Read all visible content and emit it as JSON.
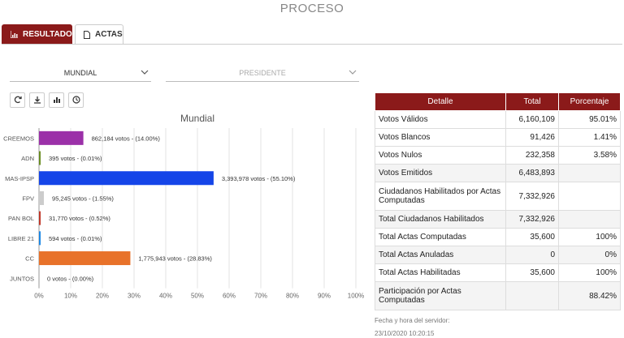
{
  "page": {
    "title": "PROCESO"
  },
  "tabs": [
    {
      "label": "RESULTADOS",
      "icon": "chart-icon",
      "active": true
    },
    {
      "label": "ACTAS",
      "icon": "document-icon",
      "active": false
    }
  ],
  "filters": {
    "scope": "MUNDIAL",
    "office": "PRESIDENTE"
  },
  "toolbar": {
    "icons": [
      "refresh-icon",
      "download-icon",
      "bar-chart-icon",
      "clock-icon"
    ]
  },
  "chart_data": {
    "type": "bar",
    "orientation": "horizontal",
    "title": "Mundial",
    "categories": [
      "CREEMOS",
      "ADN",
      "MAS-IPSP",
      "FPV",
      "PAN BOL",
      "LIBRE 21",
      "CC",
      "JUNTOS"
    ],
    "values": [
      14.0,
      0.01,
      55.1,
      1.55,
      0.52,
      0.01,
      28.83,
      0.0
    ],
    "data_labels": [
      "862,184 votos - (14.00%)",
      "395 votos - (0.01%)",
      "3,393,978 votos - (55.10%)",
      "95,245 votos - (1.55%)",
      "31,770 votos - (0.52%)",
      "594 votos - (0.01%)",
      "1,775,943 votos - (28.83%)",
      "0 votos - (0.00%)"
    ],
    "colors": [
      "#9b30a8",
      "#6b8e23",
      "#1545e8",
      "#cccccc",
      "#c0392b",
      "#1e88e5",
      "#e8722a",
      "#ffffff"
    ],
    "xlim": [
      0,
      100
    ],
    "xticks": [
      "0%",
      "10%",
      "20%",
      "30%",
      "40%",
      "50%",
      "60%",
      "70%",
      "80%",
      "90%",
      "100%"
    ],
    "grid": true
  },
  "table": {
    "headers": [
      "Detalle",
      "Total",
      "Porcentaje"
    ],
    "rows": [
      [
        "Votos Válidos",
        "6,160,109",
        "95.01%"
      ],
      [
        "Votos Blancos",
        "91,426",
        "1.41%"
      ],
      [
        "Votos Nulos",
        "232,358",
        "3.58%"
      ],
      [
        "Votos Emitidos",
        "6,483,893",
        ""
      ],
      [
        "Ciudadanos Habilitados por Actas Computadas",
        "7,332,926",
        ""
      ],
      [
        "Total Ciudadanos Habilitados",
        "7,332,926",
        ""
      ],
      [
        "Total Actas Computadas",
        "35,600",
        "100%"
      ],
      [
        "Total Actas Anuladas",
        "0",
        "0%"
      ],
      [
        "Total Actas Habilitadas",
        "35,600",
        "100%"
      ],
      [
        "Participación por Actas Computadas",
        "",
        "88.42%"
      ]
    ]
  },
  "server": {
    "label": "Fecha y hora del servidor:",
    "datetime": "23/10/2020 10:20:15"
  },
  "colors": {
    "brand": "#8b1a1a"
  }
}
